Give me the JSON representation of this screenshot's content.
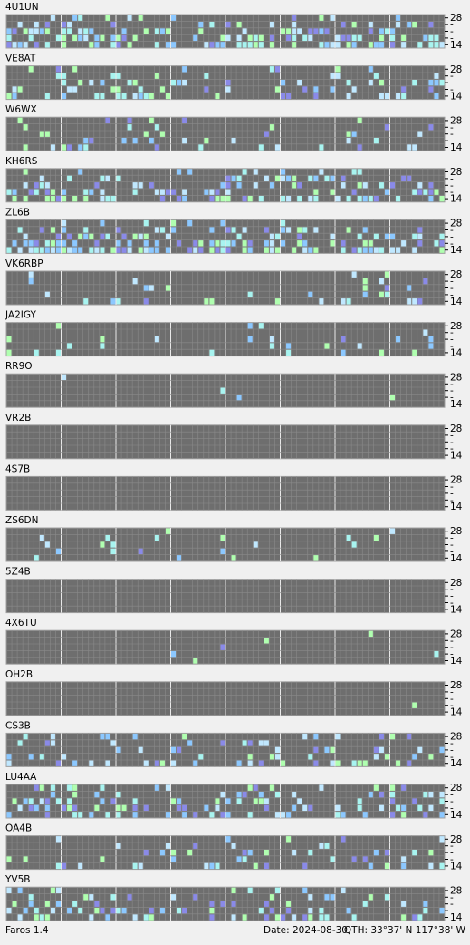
{
  "stations": [
    "4U1UN",
    "VE8AT",
    "W6WX",
    "KH6RS",
    "ZL6B",
    "VK6RBP",
    "JA2IGY",
    "RR9O",
    "VR2B",
    "4S7B",
    "ZS6DN",
    "5Z4B",
    "4X6TU",
    "OH2B",
    "CS3B",
    "LU4AA",
    "OA4B",
    "YV5B"
  ],
  "band_labels": [
    "28",
    "-",
    "-",
    "-",
    "14"
  ],
  "footer": {
    "app": "Faros 1.4",
    "date": "Date: 2024-08-30",
    "qth": "QTH: 33°37' N  117°38' W"
  }
}
